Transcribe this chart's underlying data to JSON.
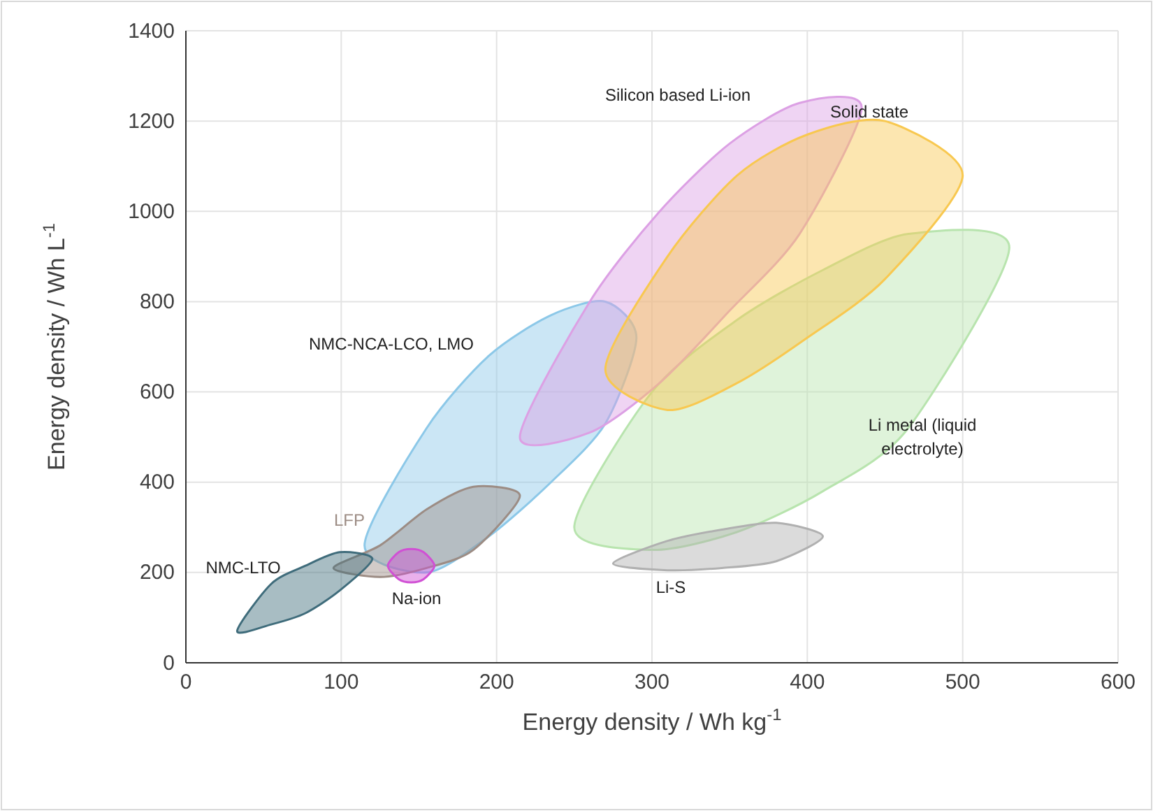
{
  "chart_data": {
    "type": "area",
    "xlabel": "Energy density / Wh kg$^{-1}$",
    "ylabel": "Energy density / Wh L$^{-1}$",
    "xlim": [
      0,
      600
    ],
    "xticks": [
      0,
      100,
      200,
      300,
      400,
      500,
      600
    ],
    "ylim": [
      0,
      1400
    ],
    "yticks": [
      0,
      200,
      400,
      600,
      800,
      1000,
      1200,
      1400
    ],
    "grid": true,
    "legend": false,
    "series": [
      {
        "name": "NMC-NCA-LCO, LMO",
        "color": "#8cc8e8",
        "x": [
          115,
          155,
          195,
          235,
          270,
          290,
          270,
          235,
          195,
          155
        ],
        "values": [
          260,
          520,
          680,
          770,
          800,
          720,
          530,
          400,
          280,
          200
        ]
      },
      {
        "name": "Li metal (liquid electrolyte)",
        "color": "#b8e4ae",
        "x": [
          250,
          300,
          355,
          410,
          465,
          530,
          465,
          410,
          355,
          300
        ],
        "values": [
          300,
          600,
          760,
          870,
          950,
          920,
          520,
          380,
          290,
          250
        ]
      },
      {
        "name": "Silicon based Li-ion",
        "color": "#dca0e4",
        "x": [
          215,
          260,
          305,
          350,
          395,
          435,
          395,
          350,
          305,
          260
        ],
        "values": [
          500,
          800,
          1000,
          1150,
          1240,
          1230,
          950,
          780,
          620,
          510
        ]
      },
      {
        "name": "Solid state",
        "color": "#f8c850",
        "x": [
          270,
          310,
          355,
          400,
          450,
          500,
          450,
          400,
          355,
          310
        ],
        "values": [
          650,
          900,
          1080,
          1170,
          1200,
          1080,
          850,
          720,
          620,
          560
        ]
      },
      {
        "name": "LFP",
        "color": "#9c8c84",
        "x": [
          95,
          125,
          155,
          185,
          215,
          185,
          155,
          125
        ],
        "values": [
          210,
          260,
          340,
          390,
          370,
          250,
          210,
          190
        ]
      },
      {
        "name": "NMC-LTO",
        "color": "#3f6c7b",
        "x": [
          33,
          55,
          77,
          99,
          120,
          99,
          77,
          55
        ],
        "values": [
          70,
          175,
          215,
          245,
          230,
          160,
          110,
          85
        ]
      },
      {
        "name": "Li-S",
        "color": "#b0b0b0",
        "x": [
          275,
          310,
          345,
          380,
          410,
          380,
          345,
          310
        ],
        "values": [
          220,
          270,
          295,
          310,
          280,
          225,
          210,
          205
        ]
      },
      {
        "name": "Na-ion",
        "color": "#d050d4",
        "x": [
          130,
          137,
          145,
          153,
          160,
          153,
          145,
          137
        ],
        "values": [
          215,
          245,
          252,
          245,
          215,
          185,
          178,
          185
        ]
      }
    ]
  }
}
